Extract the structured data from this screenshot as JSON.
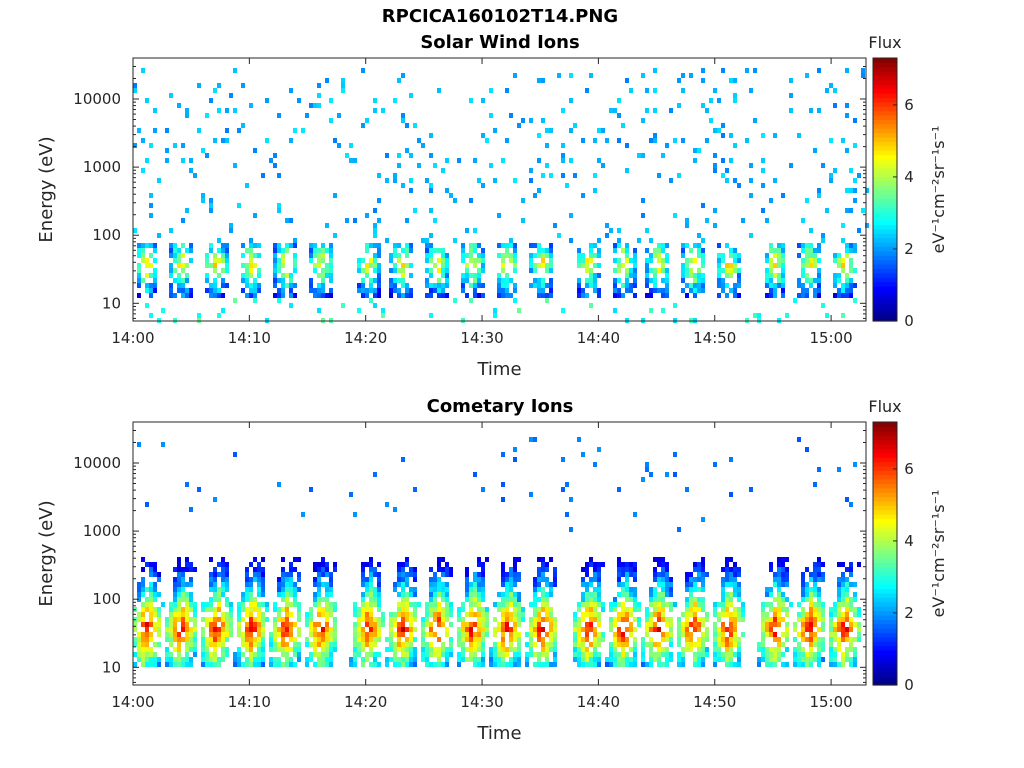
{
  "figure_title": "RPCICA160102T14.PNG",
  "chart_data": [
    {
      "type": "heatmap",
      "title": "Solar Wind Ions",
      "xlabel": "Time",
      "ylabel": "Energy (eV)",
      "x_ticks": [
        "14:00",
        "14:10",
        "14:20",
        "14:30",
        "14:40",
        "14:50",
        "15:00"
      ],
      "y_ticks": [
        "10",
        "100",
        "1000",
        "10000"
      ],
      "y_scale": "log",
      "xlim": [
        "14:00",
        "15:03"
      ],
      "ylim": [
        5.5,
        40000
      ],
      "grid": false,
      "colorbar": {
        "label": "Flux",
        "units": "eV⁻¹cm⁻²sr⁻¹s⁻¹",
        "ticks": [
          "0",
          "2",
          "4",
          "6"
        ],
        "range": [
          0,
          7.3
        ],
        "colormap": "jet"
      },
      "burst_times": [
        "14:01",
        "14:04",
        "14:07",
        "14:10",
        "14:13",
        "14:16",
        "14:20",
        "14:23",
        "14:26",
        "14:29",
        "14:32",
        "14:35",
        "14:39",
        "14:42",
        "14:45",
        "14:48",
        "14:51",
        "14:55",
        "14:58",
        "15:01"
      ],
      "core_energy_eV": 40,
      "core_flux_peak": 5.0,
      "background_energy_range_eV": [
        80,
        30000
      ],
      "background_flux": 1.8
    },
    {
      "type": "heatmap",
      "title": "Cometary Ions",
      "xlabel": "Time",
      "ylabel": "Energy (eV)",
      "x_ticks": [
        "14:00",
        "14:10",
        "14:20",
        "14:30",
        "14:40",
        "14:50",
        "15:00"
      ],
      "y_ticks": [
        "10",
        "100",
        "1000",
        "10000"
      ],
      "y_scale": "log",
      "xlim": [
        "14:00",
        "15:03"
      ],
      "ylim": [
        5.5,
        40000
      ],
      "grid": false,
      "colorbar": {
        "label": "Flux",
        "units": "eV⁻¹cm⁻²sr⁻¹s⁻¹",
        "ticks": [
          "0",
          "2",
          "4",
          "6"
        ],
        "range": [
          0,
          7.3
        ],
        "colormap": "jet"
      },
      "burst_times": [
        "14:01",
        "14:04",
        "14:07",
        "14:10",
        "14:13",
        "14:16",
        "14:20",
        "14:23",
        "14:26",
        "14:29",
        "14:32",
        "14:35",
        "14:39",
        "14:42",
        "14:45",
        "14:48",
        "14:51",
        "14:55",
        "14:58",
        "15:01"
      ],
      "core_energy_eV": 40,
      "core_flux_peak": 6.6,
      "plume_top_energy_eV": 1500,
      "background_energy_range_eV": [
        1000,
        25000
      ],
      "background_flux": 1.5
    }
  ]
}
